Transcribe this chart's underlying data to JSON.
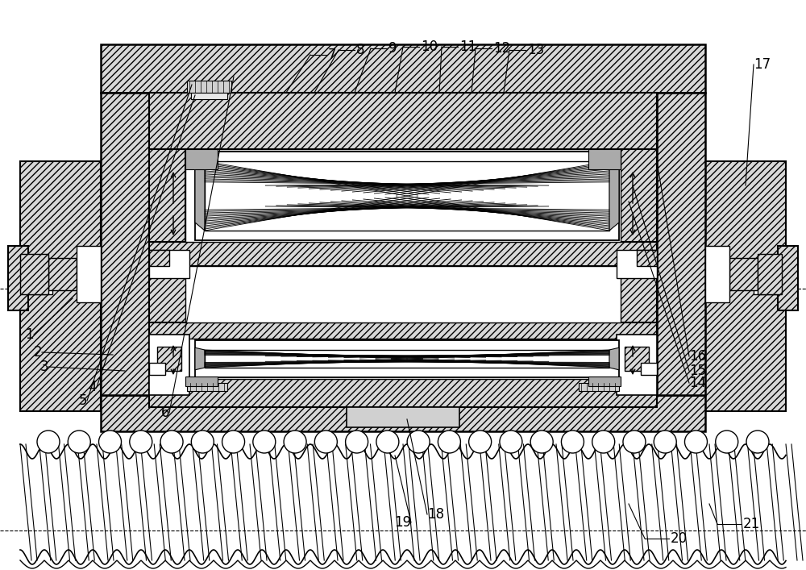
{
  "fig_width": 10.0,
  "fig_height": 7.07,
  "dpi": 100,
  "bg_color": "#ffffff",
  "hatch_fc": "#d8d8d8",
  "label_fs": 12
}
